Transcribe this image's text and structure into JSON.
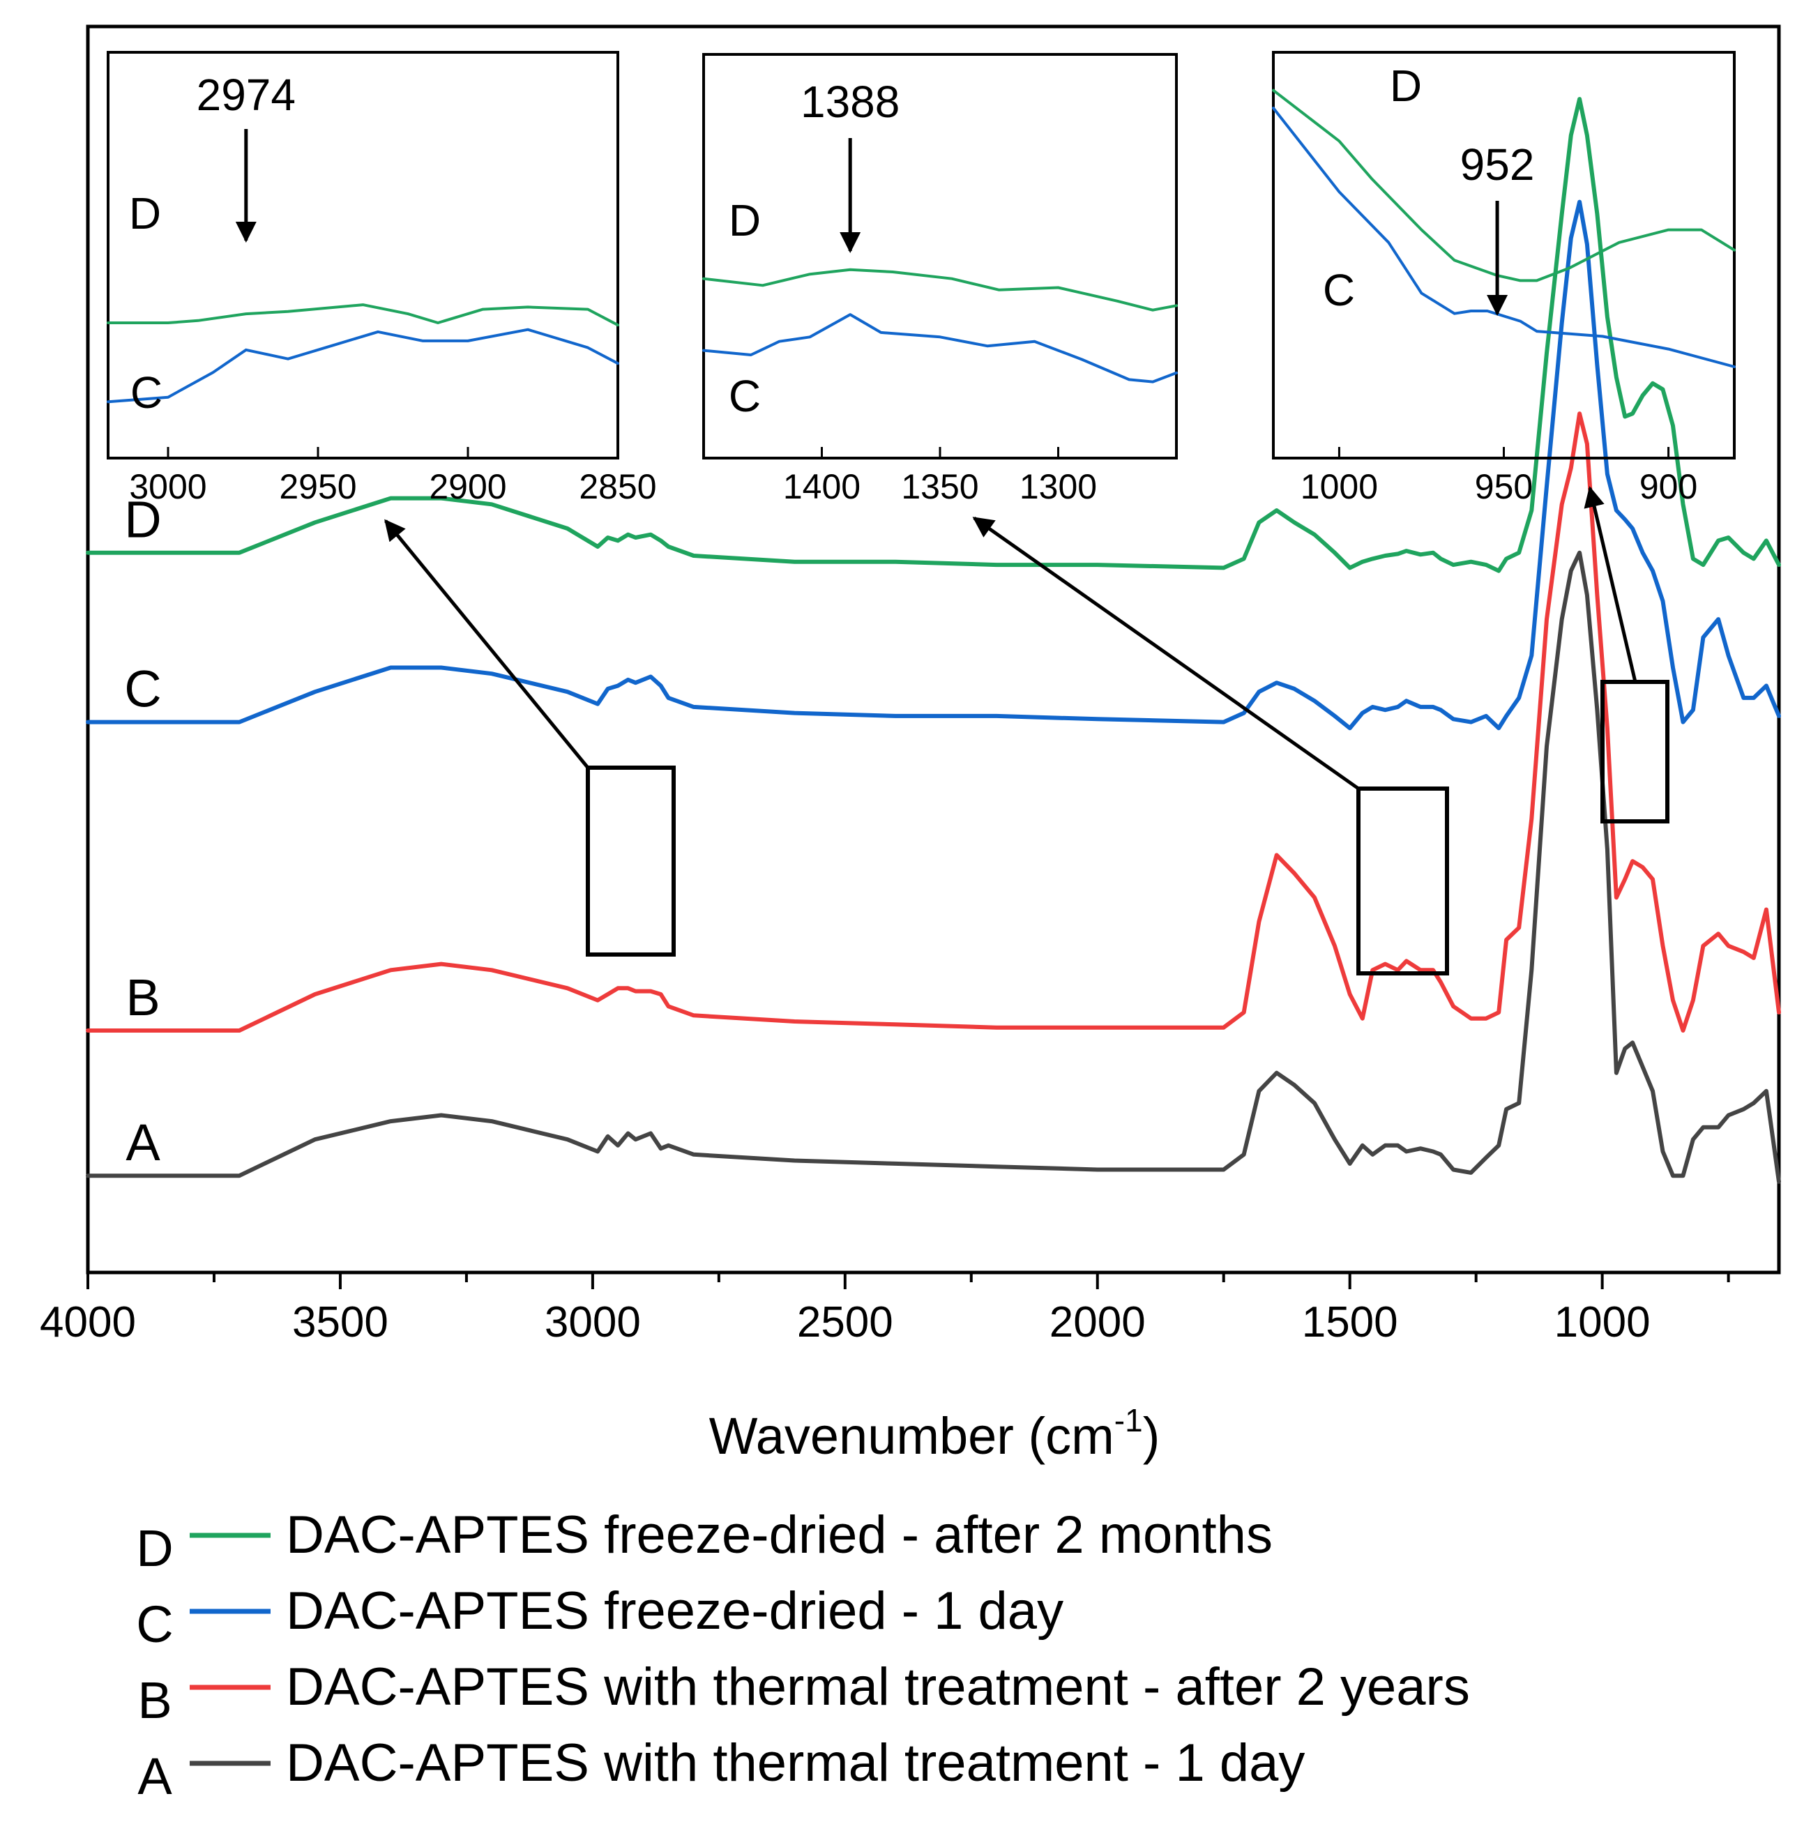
{
  "chart_data": {
    "type": "line",
    "title": "",
    "xlabel": "Wavenumber (cm",
    "xlabel_sup": "-1",
    "xlabel_close": ")",
    "ylabel": "",
    "xlim": [
      4000,
      650
    ],
    "x_reversed": true,
    "y_ticks_shown": false,
    "grid": false,
    "xticks": [
      4000,
      3500,
      3000,
      2500,
      2000,
      1500,
      1000
    ],
    "xtick_labels": [
      "4000",
      "3500",
      "3000",
      "2500",
      "2000",
      "1500",
      "1000"
    ],
    "legend_position": "bottom-below-axes",
    "series": [
      {
        "id": "D",
        "letter": "D",
        "name": "DAC-APTES freeze-dried - after 2 months",
        "color": "#1fa45e",
        "x": [
          4000,
          3700,
          3550,
          3400,
          3300,
          3200,
          3050,
          2990,
          2970,
          2950,
          2930,
          2915,
          2885,
          2865,
          2850,
          2800,
          2600,
          2400,
          2200,
          2000,
          1750,
          1710,
          1680,
          1645,
          1610,
          1570,
          1530,
          1500,
          1475,
          1455,
          1430,
          1405,
          1388,
          1360,
          1335,
          1320,
          1295,
          1260,
          1230,
          1205,
          1190,
          1165,
          1140,
          1110,
          1080,
          1062,
          1045,
          1030,
          1010,
          990,
          972,
          955,
          940,
          920,
          900,
          880,
          860,
          840,
          820,
          800,
          770,
          750,
          720,
          700,
          675,
          650
        ],
        "y": [
          0.79,
          0.79,
          0.84,
          0.88,
          0.88,
          0.87,
          0.83,
          0.8,
          0.815,
          0.81,
          0.82,
          0.815,
          0.82,
          0.81,
          0.8,
          0.785,
          0.775,
          0.775,
          0.77,
          0.77,
          0.765,
          0.78,
          0.84,
          0.86,
          0.84,
          0.82,
          0.79,
          0.765,
          0.775,
          0.78,
          0.785,
          0.788,
          0.793,
          0.787,
          0.79,
          0.78,
          0.77,
          0.775,
          0.77,
          0.76,
          0.78,
          0.79,
          0.86,
          1.12,
          1.35,
          1.48,
          1.54,
          1.48,
          1.35,
          1.18,
          1.08,
          1.015,
          1.02,
          1.05,
          1.07,
          1.06,
          1.0,
          0.87,
          0.78,
          0.77,
          0.81,
          0.815,
          0.79,
          0.78,
          0.81,
          0.77
        ]
      },
      {
        "id": "C",
        "letter": "C",
        "name": "DAC-APTES freeze-dried - 1 day",
        "color": "#1166cc",
        "x": [
          4000,
          3700,
          3550,
          3400,
          3300,
          3200,
          3050,
          2990,
          2970,
          2950,
          2930,
          2915,
          2885,
          2865,
          2850,
          2800,
          2600,
          2400,
          2200,
          2000,
          1750,
          1710,
          1680,
          1645,
          1610,
          1570,
          1530,
          1500,
          1475,
          1455,
          1430,
          1405,
          1388,
          1360,
          1335,
          1320,
          1295,
          1260,
          1230,
          1205,
          1190,
          1165,
          1140,
          1110,
          1080,
          1062,
          1045,
          1030,
          1010,
          990,
          972,
          955,
          940,
          920,
          900,
          880,
          860,
          840,
          820,
          800,
          770,
          750,
          720,
          700,
          675,
          650
        ],
        "y": [
          0.51,
          0.51,
          0.56,
          0.6,
          0.6,
          0.59,
          0.56,
          0.54,
          0.565,
          0.57,
          0.58,
          0.575,
          0.585,
          0.57,
          0.55,
          0.535,
          0.525,
          0.52,
          0.52,
          0.515,
          0.51,
          0.525,
          0.56,
          0.575,
          0.565,
          0.545,
          0.52,
          0.5,
          0.525,
          0.535,
          0.53,
          0.535,
          0.545,
          0.535,
          0.535,
          0.53,
          0.515,
          0.51,
          0.52,
          0.5,
          0.52,
          0.55,
          0.62,
          0.9,
          1.17,
          1.31,
          1.37,
          1.3,
          1.1,
          0.92,
          0.86,
          0.845,
          0.83,
          0.79,
          0.76,
          0.71,
          0.6,
          0.51,
          0.53,
          0.65,
          0.68,
          0.62,
          0.55,
          0.55,
          0.57,
          0.52
        ]
      },
      {
        "id": "B",
        "letter": "B",
        "name": "DAC-APTES with thermal treatment - after 2 years",
        "color": "#ee3b3b",
        "x": [
          4000,
          3700,
          3550,
          3400,
          3300,
          3200,
          3050,
          2990,
          2970,
          2950,
          2930,
          2915,
          2885,
          2865,
          2850,
          2800,
          2600,
          2400,
          2200,
          2000,
          1750,
          1710,
          1680,
          1645,
          1610,
          1570,
          1530,
          1500,
          1475,
          1455,
          1430,
          1405,
          1388,
          1360,
          1335,
          1320,
          1295,
          1260,
          1230,
          1205,
          1190,
          1165,
          1140,
          1110,
          1080,
          1062,
          1045,
          1030,
          1010,
          990,
          972,
          955,
          940,
          920,
          900,
          880,
          860,
          840,
          820,
          800,
          770,
          750,
          720,
          700,
          675,
          650
        ],
        "y": [
          0.0,
          0.0,
          0.06,
          0.1,
          0.11,
          0.1,
          0.07,
          0.05,
          0.06,
          0.07,
          0.07,
          0.065,
          0.065,
          0.06,
          0.04,
          0.025,
          0.015,
          0.01,
          0.005,
          0.005,
          0.005,
          0.03,
          0.18,
          0.29,
          0.26,
          0.22,
          0.14,
          0.06,
          0.02,
          0.1,
          0.11,
          0.1,
          0.115,
          0.1,
          0.1,
          0.08,
          0.04,
          0.02,
          0.02,
          0.03,
          0.15,
          0.17,
          0.35,
          0.68,
          0.87,
          0.93,
          1.02,
          0.97,
          0.72,
          0.5,
          0.22,
          0.25,
          0.28,
          0.27,
          0.25,
          0.14,
          0.05,
          0.0,
          0.05,
          0.14,
          0.16,
          0.14,
          0.13,
          0.12,
          0.2,
          0.03
        ]
      },
      {
        "id": "A",
        "letter": "A",
        "name": "DAC-APTES with thermal treatment - 1 day",
        "color": "#444444",
        "x": [
          4000,
          3700,
          3550,
          3400,
          3300,
          3200,
          3050,
          2990,
          2970,
          2950,
          2930,
          2915,
          2885,
          2865,
          2850,
          2800,
          2600,
          2400,
          2200,
          2000,
          1750,
          1710,
          1680,
          1645,
          1610,
          1570,
          1530,
          1500,
          1475,
          1455,
          1430,
          1405,
          1388,
          1360,
          1335,
          1320,
          1295,
          1260,
          1230,
          1205,
          1190,
          1165,
          1140,
          1110,
          1080,
          1062,
          1045,
          1030,
          1010,
          990,
          972,
          955,
          940,
          920,
          900,
          880,
          860,
          840,
          820,
          800,
          770,
          750,
          720,
          700,
          675,
          650
        ],
        "y": [
          -0.24,
          -0.24,
          -0.18,
          -0.15,
          -0.14,
          -0.15,
          -0.18,
          -0.2,
          -0.175,
          -0.19,
          -0.17,
          -0.18,
          -0.17,
          -0.195,
          -0.19,
          -0.205,
          -0.215,
          -0.22,
          -0.225,
          -0.23,
          -0.23,
          -0.205,
          -0.1,
          -0.07,
          -0.09,
          -0.12,
          -0.18,
          -0.22,
          -0.19,
          -0.205,
          -0.19,
          -0.19,
          -0.2,
          -0.195,
          -0.2,
          -0.205,
          -0.23,
          -0.235,
          -0.21,
          -0.19,
          -0.13,
          -0.12,
          0.1,
          0.47,
          0.68,
          0.76,
          0.79,
          0.72,
          0.53,
          0.3,
          -0.07,
          -0.03,
          -0.02,
          -0.06,
          -0.1,
          -0.2,
          -0.24,
          -0.24,
          -0.18,
          -0.16,
          -0.16,
          -0.14,
          -0.13,
          -0.12,
          -0.1,
          -0.25
        ]
      }
    ],
    "curve_letters": [
      "D",
      "C",
      "B",
      "A"
    ],
    "insets": [
      {
        "id": "inset-1",
        "xlim": [
          3020,
          2850
        ],
        "xticks": [
          3000,
          2950,
          2900,
          2850
        ],
        "xtick_labels": [
          "3000",
          "2950",
          "2900",
          "2850"
        ],
        "peak_label": "2974",
        "peak_x": 2974,
        "letters": [
          "D",
          "C"
        ],
        "D": {
          "x": [
            3020,
            3000,
            2990,
            2974,
            2960,
            2935,
            2920,
            2910,
            2895,
            2880,
            2860,
            2850
          ],
          "y": [
            0.0,
            0.0,
            0.01,
            0.04,
            0.05,
            0.08,
            0.04,
            0.0,
            0.06,
            0.07,
            0.06,
            -0.01
          ]
        },
        "C": {
          "x": [
            3020,
            3000,
            2985,
            2974,
            2960,
            2945,
            2930,
            2915,
            2900,
            2880,
            2860,
            2850
          ],
          "y": [
            -0.35,
            -0.33,
            -0.22,
            -0.12,
            -0.16,
            -0.1,
            -0.04,
            -0.08,
            -0.08,
            -0.03,
            -0.11,
            -0.18
          ]
        }
      },
      {
        "id": "inset-2",
        "xlim": [
          1450,
          1250
        ],
        "xticks": [
          1400,
          1350,
          1300
        ],
        "xtick_labels": [
          "1400",
          "1350",
          "1300"
        ],
        "peak_label": "1388",
        "peak_x": 1388,
        "letters": [
          "D",
          "C"
        ],
        "D": {
          "x": [
            1450,
            1425,
            1405,
            1388,
            1370,
            1345,
            1325,
            1300,
            1275,
            1260,
            1250
          ],
          "y": [
            0.0,
            -0.03,
            0.02,
            0.04,
            0.03,
            0.0,
            -0.05,
            -0.04,
            -0.1,
            -0.14,
            -0.12
          ]
        },
        "C": {
          "x": [
            1450,
            1430,
            1418,
            1405,
            1388,
            1375,
            1350,
            1330,
            1310,
            1290,
            1270,
            1260,
            1250
          ],
          "y": [
            -0.32,
            -0.34,
            -0.28,
            -0.26,
            -0.16,
            -0.24,
            -0.26,
            -0.3,
            -0.28,
            -0.36,
            -0.45,
            -0.46,
            -0.42
          ]
        }
      },
      {
        "id": "inset-3",
        "xlim": [
          1020,
          880
        ],
        "xticks": [
          1000,
          950,
          900
        ],
        "xtick_labels": [
          "1000",
          "950",
          "900"
        ],
        "peak_label": "952",
        "peak_x": 952,
        "letters": [
          "D",
          "C"
        ],
        "D": {
          "x": [
            1020,
            1000,
            990,
            975,
            965,
            952,
            945,
            940,
            930,
            915,
            900,
            890,
            880
          ],
          "y": [
            0.85,
            0.65,
            0.5,
            0.3,
            0.18,
            0.12,
            0.1,
            0.1,
            0.15,
            0.25,
            0.3,
            0.3,
            0.22
          ]
        },
        "C": {
          "x": [
            1020,
            1000,
            985,
            975,
            965,
            960,
            955,
            945,
            940,
            920,
            900,
            880
          ],
          "y": [
            0.78,
            0.45,
            0.25,
            0.05,
            -0.03,
            -0.02,
            -0.02,
            -0.06,
            -0.1,
            -0.12,
            -0.17,
            -0.24
          ]
        }
      }
    ]
  }
}
